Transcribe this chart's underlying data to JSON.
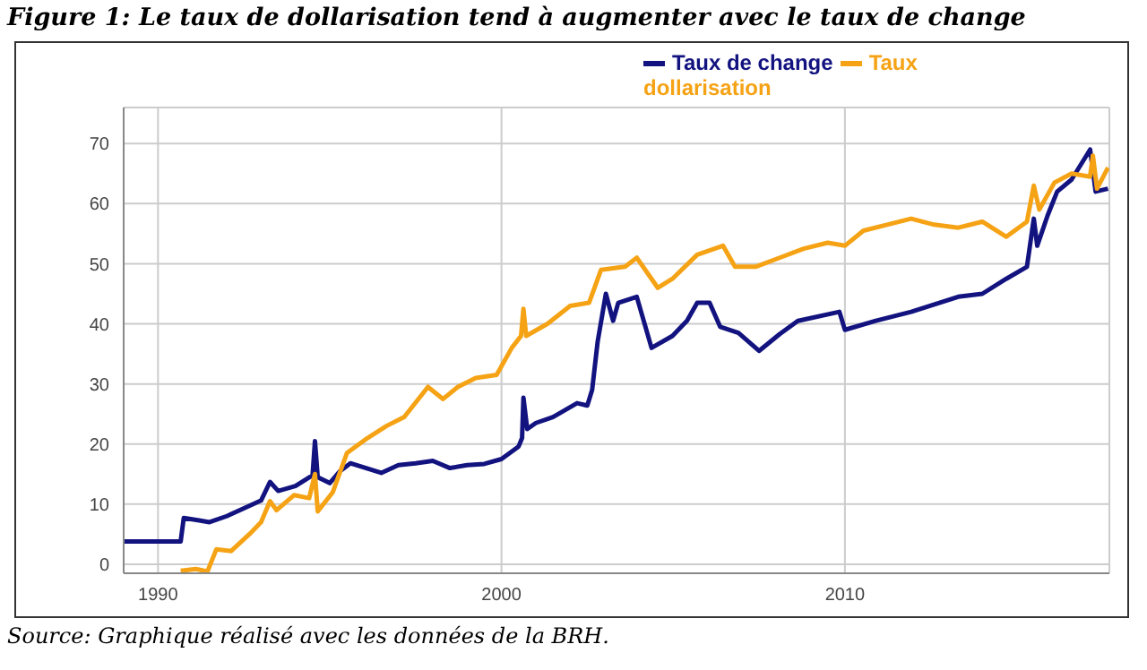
{
  "chart_data": {
    "type": "line",
    "title": "Figure 1: Le taux de dollarisation tend à augmenter avec le taux de change",
    "annotations": [
      "Source: Graphique réalisé avec les données de la BRH."
    ],
    "xlim": [
      1989,
      2017.7
    ],
    "xticks": [
      1990,
      2000,
      2010
    ],
    "ylim": [
      -1.5,
      76
    ],
    "yticks": [
      0,
      10,
      20,
      30,
      40,
      50,
      60,
      70
    ],
    "grid": true,
    "legend": "top right",
    "line_style": "solid",
    "marker": "none",
    "series": [
      {
        "name": "Taux de change",
        "color": "#131380",
        "x": [
          1989,
          1990.66,
          1990.75,
          1991.2,
          1991.5,
          1992,
          1992.5,
          1993,
          1993.26,
          1993.5,
          1994,
          1994.5,
          1994.57,
          1994.65,
          1995,
          1995.3,
          1995.6,
          1996.5,
          1997,
          1997.5,
          1998,
          1998.5,
          1999,
          1999.5,
          2000,
          2000.5,
          2000.6,
          2000.64,
          2000.75,
          2001,
          2001.5,
          2002.2,
          2002.5,
          2002.64,
          2002.8,
          2003.04,
          2003.25,
          2003.4,
          2003.94,
          2004.37,
          2004.98,
          2005.4,
          2005.7,
          2006.06,
          2006.37,
          2006.9,
          2007.5,
          2008.1,
          2008.63,
          2009.84,
          2010,
          2010.9,
          2011.93,
          2013.3,
          2014,
          2014.7,
          2015.3,
          2015.5,
          2015.6,
          2015.9,
          2016.18,
          2016.6,
          2017.14,
          2017.3,
          2017.66
        ],
        "values": [
          3.8,
          3.8,
          7.7,
          7.3,
          7,
          8,
          9.3,
          10.6,
          13.7,
          12.2,
          13,
          14.8,
          20.5,
          14.5,
          13.5,
          15.5,
          16.8,
          15.2,
          16.5,
          16.8,
          17.2,
          16,
          16.5,
          16.7,
          17.5,
          19.6,
          21,
          27.7,
          22.5,
          23.5,
          24.5,
          26.8,
          26.4,
          29,
          37,
          45,
          40.5,
          43.5,
          44.5,
          36,
          38,
          40.5,
          43.5,
          43.5,
          39.5,
          38.5,
          35.5,
          38.3,
          40.5,
          42,
          39,
          40.5,
          42,
          44.5,
          45,
          47.5,
          49.5,
          57.5,
          53,
          58,
          62,
          64,
          69,
          62,
          62.5
        ]
      },
      {
        "name": "Taux dollarisation",
        "color": "#f5a315",
        "x": [
          1990.66,
          1991.1,
          1991.44,
          1991.7,
          1992.13,
          1992.66,
          1993,
          1993.26,
          1993.45,
          1993.96,
          1994.4,
          1994.57,
          1994.65,
          1995.09,
          1995.5,
          1996.1,
          1996.65,
          1997.17,
          1997.86,
          1998.3,
          1998.73,
          1999.25,
          1999.86,
          2000.3,
          2000.57,
          2000.64,
          2000.72,
          2001.34,
          2002,
          2002.55,
          2002.9,
          2003.6,
          2003.94,
          2004.55,
          2004.98,
          2005.7,
          2006.45,
          2006.8,
          2007.4,
          2008.1,
          2008.8,
          2009.5,
          2010,
          2010.54,
          2011.23,
          2011.93,
          2012.6,
          2013.3,
          2014,
          2014.7,
          2015.3,
          2015.5,
          2015.66,
          2016.1,
          2016.6,
          2017.14,
          2017.22,
          2017.34,
          2017.66
        ],
        "values": [
          -1.1,
          -0.8,
          -1.2,
          2.5,
          2.2,
          5,
          7,
          10.5,
          9,
          11.5,
          11,
          15,
          8.8,
          12,
          18.5,
          21,
          23,
          24.5,
          29.5,
          27.5,
          29.5,
          31,
          31.5,
          36,
          38,
          42.5,
          38,
          40,
          43,
          43.5,
          49,
          49.5,
          51,
          46,
          47.5,
          51.5,
          53,
          49.5,
          49.5,
          51,
          52.5,
          53.5,
          53,
          55.5,
          56.5,
          57.5,
          56.5,
          56,
          57,
          54.5,
          57,
          63,
          59,
          63.5,
          65,
          64.5,
          68,
          62.5,
          66
        ]
      }
    ]
  }
}
